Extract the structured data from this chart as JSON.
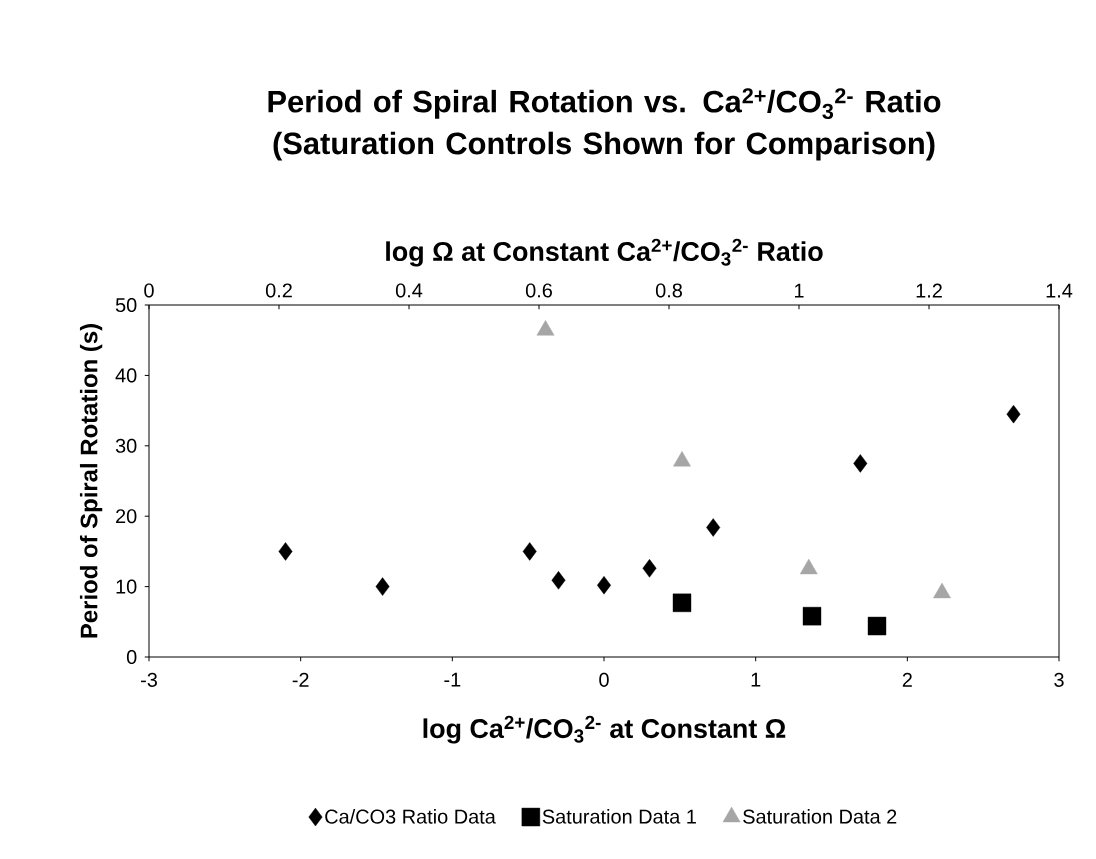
{
  "chart_data": {
    "type": "scatter",
    "title": "Period of Spiral Rotation vs. Ca$^{2+}$/CO$_{3}$$^{2-}$ Ratio (Saturation Controls Shown for Comparison)",
    "xlabel": "log Ca$^{2+}$/CO$_{3}$$^{2-}$ at Constant Ω",
    "x2label": "log Ω at Constant Ca$^{2+}$/CO$_{3}$$^{2-}$ Ratio",
    "ylabel": "Period of Spiral Rotation (s)",
    "xlim": [
      -3,
      3
    ],
    "xticks": [
      -3,
      -2,
      -1,
      0,
      1,
      2,
      3
    ],
    "x2lim": [
      0,
      1.4
    ],
    "x2ticks": [
      0,
      0.2,
      0.4,
      0.6,
      0.8,
      1,
      1.2,
      1.4
    ],
    "ylim": [
      0,
      50
    ],
    "yticks": [
      0,
      10,
      20,
      30,
      40,
      50
    ],
    "grid": false,
    "legend": "bottom",
    "series": [
      {
        "name": "Ca/CO3 Ratio Data",
        "color": "#000000",
        "marker": "diamond",
        "x": [
          -2.1,
          -1.46,
          -0.49,
          -0.3,
          0.0,
          0.3,
          0.72,
          1.69,
          2.7
        ],
        "values": [
          15.0,
          10.0,
          15.0,
          10.9,
          10.2,
          12.6,
          18.4,
          27.5,
          34.5
        ]
      },
      {
        "name": "Saturation Data 1",
        "color": "#000000",
        "marker": "square",
        "axis": "x2",
        "x": [
          0.82,
          1.02,
          1.12
        ],
        "values": [
          7.7,
          5.8,
          4.4
        ]
      },
      {
        "name": "Saturation Data 2",
        "color": "#a6a6a6",
        "marker": "triangle",
        "axis": "x2",
        "x": [
          0.61,
          0.82,
          1.015,
          1.22
        ],
        "values": [
          46.4,
          27.8,
          12.5,
          9.1
        ]
      }
    ]
  }
}
